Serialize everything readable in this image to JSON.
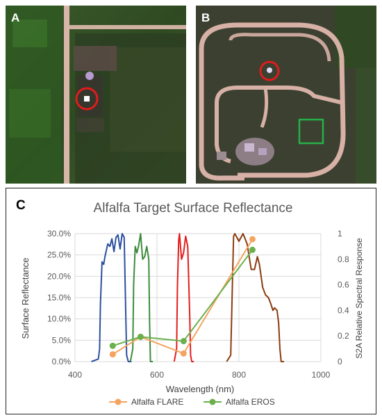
{
  "panels": {
    "a": {
      "label": "A"
    },
    "b": {
      "label": "B"
    },
    "c": {
      "label": "C"
    }
  },
  "chart_data": {
    "type": "line",
    "title": "Alfalfa Target Surface Reflectance",
    "xlabel": "Wavelength (nm)",
    "ylabel": "Surface Reflectance",
    "y2label": "S2A Relative Spectral Response",
    "xlim": [
      400,
      1000
    ],
    "ylim": [
      0,
      0.3
    ],
    "y2lim": [
      0,
      1
    ],
    "xticks": [
      "400",
      "600",
      "800",
      "1000"
    ],
    "yticks": [
      "0.0%",
      "5.0%",
      "10.0%",
      "15.0%",
      "20.0%",
      "25.0%",
      "30.0%"
    ],
    "y2ticks": [
      "0",
      "0.2",
      "0.4",
      "0.6",
      "0.8",
      "1"
    ],
    "grid": true,
    "legend_position": "bottom",
    "series": [
      {
        "name": "Alfalfa FLARE",
        "color": "#f4a460",
        "x": [
          492,
          560,
          665,
          833
        ],
        "y": [
          0.017,
          0.058,
          0.019,
          0.287
        ]
      },
      {
        "name": "Alfalfa EROS",
        "color": "#6ab04c",
        "x": [
          492,
          560,
          665,
          833
        ],
        "y": [
          0.037,
          0.058,
          0.048,
          0.262
        ]
      }
    ],
    "band_responses": [
      {
        "band": "blue",
        "color": "#2b4f9e",
        "x": [
          440,
          457,
          460,
          462,
          466,
          470,
          473,
          480,
          485,
          490,
          495,
          500,
          505,
          510,
          515,
          520,
          523,
          526,
          530,
          538
        ],
        "y": [
          0.0,
          0.02,
          0.1,
          0.45,
          0.78,
          0.76,
          0.82,
          0.92,
          0.9,
          0.96,
          0.86,
          0.97,
          0.99,
          0.88,
          1.0,
          0.97,
          0.5,
          0.05,
          0.0,
          0.0
        ]
      },
      {
        "band": "green",
        "color": "#3c8a3c",
        "x": [
          535,
          541,
          543,
          547,
          551,
          555,
          560,
          565,
          570,
          575,
          580,
          582,
          584,
          590
        ],
        "y": [
          0.0,
          0.1,
          0.6,
          0.9,
          0.85,
          0.9,
          1.0,
          0.8,
          0.82,
          0.9,
          0.8,
          0.3,
          0.0,
          0.0
        ]
      },
      {
        "band": "red",
        "color": "#e31d1d",
        "x": [
          642,
          648,
          650,
          653,
          655,
          660,
          665,
          670,
          675,
          680,
          682,
          685,
          690
        ],
        "y": [
          0.0,
          0.1,
          0.6,
          0.95,
          1.0,
          0.8,
          0.85,
          0.98,
          0.9,
          0.35,
          0.05,
          0.0,
          0.0
        ]
      },
      {
        "band": "nir",
        "color": "#8b3a0f",
        "x": [
          770,
          780,
          784,
          787,
          790,
          800,
          810,
          820,
          830,
          838,
          845,
          850,
          858,
          865,
          872,
          878,
          883,
          887,
          893,
          897,
          900,
          903,
          910
        ],
        "y": [
          0.0,
          0.05,
          0.6,
          0.98,
          1.0,
          0.94,
          1.0,
          0.92,
          0.72,
          0.72,
          0.82,
          0.76,
          0.58,
          0.52,
          0.5,
          0.45,
          0.4,
          0.42,
          0.4,
          0.3,
          0.1,
          0.0,
          0.0
        ]
      }
    ]
  }
}
